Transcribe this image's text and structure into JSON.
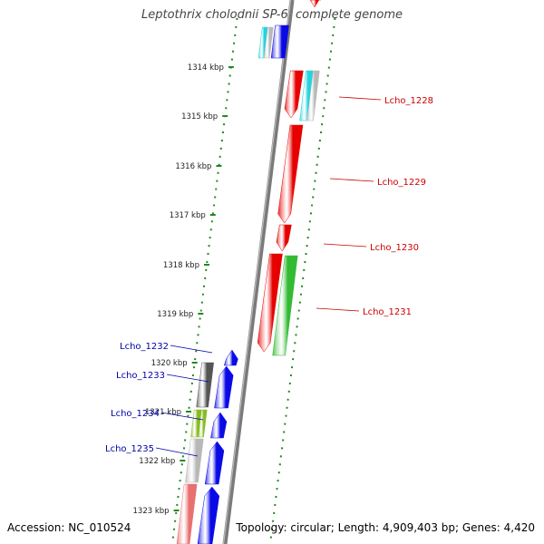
{
  "title": "Leptothrix cholodnii SP-6, complete genome",
  "footer": {
    "accession": "Accession: NC_010524",
    "summary": "Topology: circular; Length: 4,909,403 bp; Genes: 4,420"
  },
  "ticks": [
    "1314 kbp",
    "1315 kbp",
    "1316 kbp",
    "1317 kbp",
    "1318 kbp",
    "1319 kbp",
    "1320 kbp",
    "1321 kbp",
    "1322 kbp",
    "1323 kbp"
  ],
  "labels": {
    "right": [
      "Lcho_1228",
      "Lcho_1229",
      "Lcho_1230",
      "Lcho_1231"
    ],
    "left": [
      "Lcho_1232",
      "Lcho_1233",
      "Lcho_1234",
      "Lcho_1235"
    ]
  },
  "colors": {
    "label_right": "#cc0000",
    "label_left": "#0000aa",
    "dotted_ring": "#1f8a1f",
    "backbone": "#7a7a7a",
    "red": "#e60000",
    "green": "#33bb33",
    "blue": "#0a0ae6",
    "cyan": "#22d4dd",
    "gray": "#b8b8b8",
    "dark_gray": "#555555",
    "olive": "#88bb22",
    "pink": "#e87070"
  }
}
